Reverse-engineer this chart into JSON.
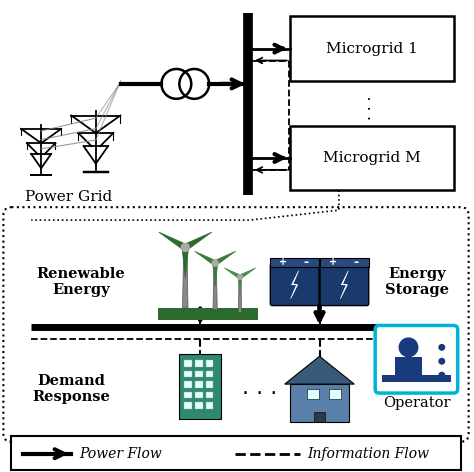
{
  "fig_width": 4.74,
  "fig_height": 4.72,
  "dpi": 100,
  "bg_color": "#ffffff",
  "microgrid1_label": "Microgrid 1",
  "microgridM_label": "Microgrid M",
  "power_grid_label": "Power Grid",
  "renewable_label": "Renewable\nEnergy",
  "storage_label": "Energy\nStorage",
  "demand_label": "Demand\nResponse",
  "operator_label": "Operator",
  "legend_power": "Power Flow",
  "legend_info": "Information Flow",
  "main_color": "#000000",
  "box_color": "#000000",
  "microgrid_box_fill": "#ffffff",
  "bus_color": "#000000",
  "wind_green": "#2d6a2d",
  "battery_blue": "#1a3a6e",
  "battery_top": "#2a4a7e",
  "operator_blue": "#1a3a7e",
  "operator_cyan": "#00b4d8",
  "building_teal": "#2d8a6e",
  "house_blue": "#3a6ea8"
}
